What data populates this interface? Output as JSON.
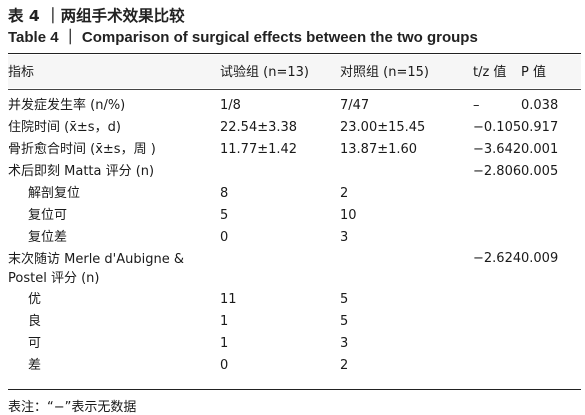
{
  "title_cn": "表 4 ｜两组手术效果比较",
  "title_en": "Table 4 ｜ Comparison of surgical effects between the two groups",
  "header": [
    "指标",
    "试验组 (n=13)",
    "对照组 (n=15)",
    "t/z 值",
    "P 值"
  ],
  "rows": [
    [
      "并发症发生率 (n/%)",
      "1/8",
      "7/47",
      "–",
      "0.038"
    ],
    [
      "住院时间 (x̄±s，d)",
      "22.54±3.38",
      "23.00±15.45",
      "−0.105",
      "0.917"
    ],
    [
      "骨折愈合时间 (x̄±s，周 )",
      "11.77±1.42",
      "13.87±1.60",
      "−3.642",
      "0.001"
    ],
    [
      "术后即刻 Matta 评分 (n)",
      "",
      "",
      "−2.806",
      "0.005"
    ],
    [
      "解剖复位",
      "8",
      "2",
      "",
      ""
    ],
    [
      "复位可",
      "5",
      "10",
      "",
      ""
    ],
    [
      "复位差",
      "0",
      "3",
      "",
      ""
    ],
    [
      "末次随访 Merle d'Aubigne & Postel 评分 (n)",
      "",
      "",
      "−2.624",
      "0.009"
    ],
    [
      "优",
      "11",
      "5",
      "",
      ""
    ],
    [
      "良",
      "1",
      "5",
      "",
      ""
    ],
    [
      "可",
      "1",
      "3",
      "",
      ""
    ],
    [
      "差",
      "0",
      "2",
      "",
      ""
    ]
  ],
  "note": "表注：“−”表示无数据"
}
